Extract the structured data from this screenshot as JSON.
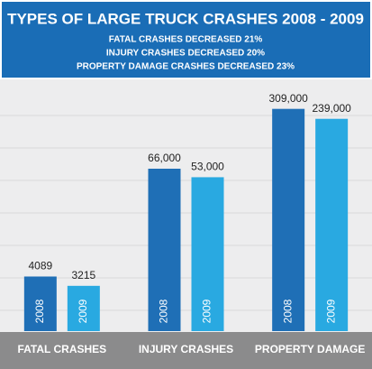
{
  "chart_data": {
    "type": "bar",
    "title": "TYPES OF LARGE TRUCK CRASHES 2008 - 2009",
    "subtitles": [
      "FATAL CRASHES DECREASED 21%",
      "INJURY CRASHES DECREASED 20%",
      "PROPERTY DAMAGE CRASHES DECREASED 23%"
    ],
    "categories": [
      "FATAL CRASHES",
      "INJURY CRASHES",
      "PROPERTY DAMAGE"
    ],
    "series": [
      {
        "name": "2008",
        "color": "#1f6fb6",
        "values": [
          4089,
          66000,
          309000
        ],
        "value_labels": [
          "4089",
          "66,000",
          "309,000"
        ]
      },
      {
        "name": "2009",
        "color": "#29a9e1",
        "values": [
          3215,
          53000,
          239000
        ],
        "value_labels": [
          "3215",
          "53,000",
          "239,000"
        ]
      }
    ],
    "log_scale": true,
    "ylim": [
      1000,
      500000
    ]
  }
}
